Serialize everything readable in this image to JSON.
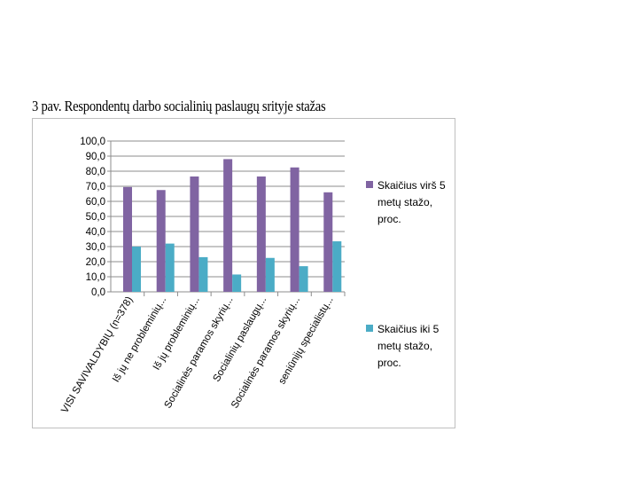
{
  "caption": "3 pav. Respondentų darbo socialinių paslaugų srityje stažas",
  "colors": {
    "series1": "#8064a2",
    "series2": "#4bacc6",
    "grid": "#8c8c8c"
  },
  "chart_data": {
    "type": "bar",
    "categories": [
      "VISI SAVIVALDYBIŲ (n=378)",
      "Iš jų ne probleminių...",
      "Iš jų probleminių...",
      "Socialinės paramos skyrių...",
      "Socialinių paslaugų...",
      "Socialinės paramos skyrių...",
      "seniūnijų specialistų..."
    ],
    "series": [
      {
        "name": "Skaičius virš 5 metų stažo, proc.",
        "values": [
          69.5,
          67.5,
          76.5,
          88.0,
          76.5,
          82.5,
          66.0
        ]
      },
      {
        "name": "Skaičius iki 5 metų stažo, proc.",
        "values": [
          30.0,
          32.0,
          23.0,
          11.5,
          22.5,
          17.0,
          33.5
        ]
      }
    ],
    "ylim": [
      0,
      100
    ],
    "yticks": [
      "0,0",
      "10,0",
      "20,0",
      "30,0",
      "40,0",
      "50,0",
      "60,0",
      "70,0",
      "80,0",
      "90,0",
      "100,0"
    ],
    "legend_lines": [
      [
        "Skaičius virš 5",
        "metų stažo,",
        "proc."
      ],
      [
        "Skaičius iki 5",
        "metų stažo,",
        "proc."
      ]
    ],
    "grid": true,
    "legend_position": "right"
  }
}
